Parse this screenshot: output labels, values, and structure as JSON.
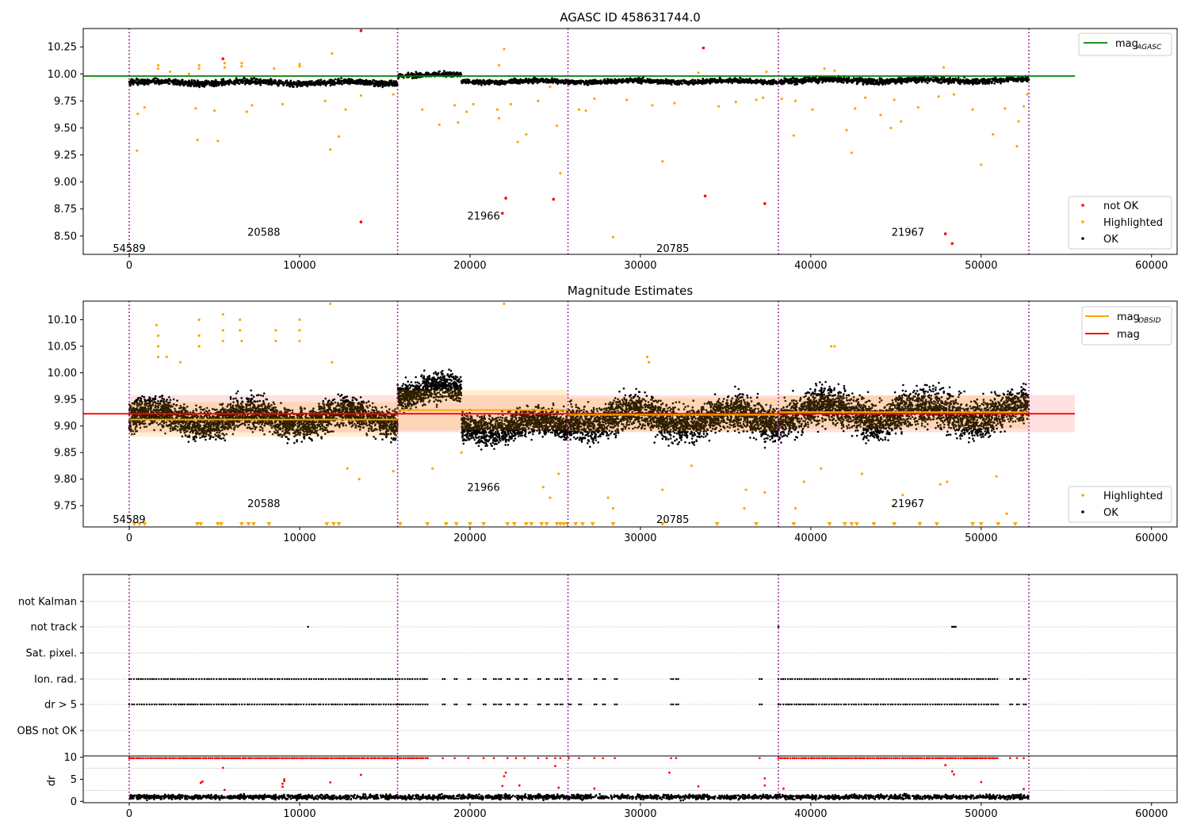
{
  "chart_data": [
    {
      "id": "top",
      "type": "scatter",
      "title": "AGASC ID 458631744.0",
      "xlim": [
        -2700,
        61500
      ],
      "ylim": [
        8.33,
        10.42
      ],
      "xticks": [
        "0",
        "10000",
        "20000",
        "30000",
        "40000",
        "50000",
        "60000"
      ],
      "yticks": [
        "8.50",
        "8.75",
        "9.00",
        "9.25",
        "9.50",
        "9.75",
        "10.00",
        "10.25"
      ],
      "vlines_x": [
        0,
        15750,
        25750,
        38100,
        52800
      ],
      "obsid_labels": [
        {
          "text": "54589",
          "x": 0,
          "y": 8.39
        },
        {
          "text": "20588",
          "x": 7900,
          "y": 8.54
        },
        {
          "text": "21966",
          "x": 20800,
          "y": 8.69
        },
        {
          "text": "20785",
          "x": 31900,
          "y": 8.39
        },
        {
          "text": "21967",
          "x": 45700,
          "y": 8.54
        }
      ],
      "mag_agasc": 9.98,
      "line_x": [
        0,
        55500
      ],
      "ok_segments": [
        {
          "x": [
            0,
            15750
          ],
          "center": 9.92,
          "spread": 0.045
        },
        {
          "x": [
            15750,
            19500
          ],
          "center": 9.99,
          "spread": 0.035
        },
        {
          "x": [
            19500,
            25750
          ],
          "center": 9.93,
          "spread": 0.035
        },
        {
          "x": [
            25750,
            38100
          ],
          "center": 9.93,
          "spread": 0.035
        },
        {
          "x": [
            38100,
            52800
          ],
          "center": 9.94,
          "spread": 0.045
        }
      ],
      "highlighted_points": [
        [
          500,
          9.63
        ],
        [
          450,
          9.29
        ],
        [
          900,
          9.69
        ],
        [
          1700,
          10.08
        ],
        [
          1700,
          10.05
        ],
        [
          2400,
          10.02
        ],
        [
          3500,
          10.0
        ],
        [
          3900,
          9.68
        ],
        [
          4000,
          9.39
        ],
        [
          4100,
          10.08
        ],
        [
          4100,
          10.05
        ],
        [
          5000,
          9.66
        ],
        [
          5200,
          9.38
        ],
        [
          5600,
          10.1
        ],
        [
          5600,
          10.06
        ],
        [
          6600,
          10.1
        ],
        [
          6600,
          10.07
        ],
        [
          6900,
          9.65
        ],
        [
          7200,
          9.71
        ],
        [
          8500,
          10.05
        ],
        [
          9000,
          9.72
        ],
        [
          10000,
          10.09
        ],
        [
          10000,
          10.07
        ],
        [
          11500,
          9.75
        ],
        [
          11800,
          9.3
        ],
        [
          11900,
          10.19
        ],
        [
          12300,
          9.42
        ],
        [
          12700,
          9.67
        ],
        [
          13600,
          9.8
        ],
        [
          15500,
          9.81
        ],
        [
          16200,
          9.97
        ],
        [
          17200,
          9.67
        ],
        [
          18200,
          9.53
        ],
        [
          19100,
          9.71
        ],
        [
          19300,
          9.55
        ],
        [
          19800,
          9.65
        ],
        [
          20200,
          9.72
        ],
        [
          21600,
          9.67
        ],
        [
          21700,
          9.59
        ],
        [
          21700,
          10.08
        ],
        [
          22000,
          10.23
        ],
        [
          22400,
          9.72
        ],
        [
          22800,
          9.37
        ],
        [
          23300,
          9.44
        ],
        [
          24000,
          9.75
        ],
        [
          24700,
          9.88
        ],
        [
          25100,
          9.52
        ],
        [
          25300,
          9.08
        ],
        [
          26400,
          9.67
        ],
        [
          26800,
          9.66
        ],
        [
          27300,
          9.77
        ],
        [
          28400,
          8.49
        ],
        [
          29200,
          9.76
        ],
        [
          30700,
          9.71
        ],
        [
          31300,
          9.19
        ],
        [
          32000,
          9.73
        ],
        [
          33400,
          10.01
        ],
        [
          34600,
          9.7
        ],
        [
          35600,
          9.74
        ],
        [
          36800,
          9.76
        ],
        [
          37200,
          9.78
        ],
        [
          37400,
          10.02
        ],
        [
          38300,
          9.77
        ],
        [
          39000,
          9.43
        ],
        [
          39100,
          9.75
        ],
        [
          40100,
          9.67
        ],
        [
          40800,
          10.05
        ],
        [
          41400,
          10.03
        ],
        [
          42100,
          9.48
        ],
        [
          42400,
          9.27
        ],
        [
          42600,
          9.68
        ],
        [
          43200,
          9.78
        ],
        [
          44100,
          9.62
        ],
        [
          44700,
          9.5
        ],
        [
          44900,
          9.76
        ],
        [
          45300,
          9.56
        ],
        [
          46300,
          9.69
        ],
        [
          47500,
          9.79
        ],
        [
          47800,
          10.06
        ],
        [
          48400,
          9.81
        ],
        [
          49500,
          9.67
        ],
        [
          50000,
          9.16
        ],
        [
          50700,
          9.44
        ],
        [
          51400,
          9.68
        ],
        [
          52100,
          9.33
        ],
        [
          52200,
          9.56
        ],
        [
          52500,
          9.7
        ],
        [
          52700,
          9.81
        ]
      ],
      "not_ok_points": [
        [
          5500,
          10.14
        ],
        [
          13600,
          10.4
        ],
        [
          13600,
          8.63
        ],
        [
          21900,
          8.71
        ],
        [
          22100,
          8.85
        ],
        [
          24900,
          8.84
        ],
        [
          33700,
          10.24
        ],
        [
          33800,
          8.87
        ],
        [
          37300,
          8.8
        ],
        [
          47900,
          8.52
        ],
        [
          48300,
          8.43
        ]
      ],
      "legend_line": {
        "label": "mag",
        "sub": "AGASC",
        "color": "#008000"
      },
      "legend_points": [
        {
          "label": "not OK",
          "color": "#ff0000"
        },
        {
          "label": "Highlighted",
          "color": "#ffa500"
        },
        {
          "label": "OK",
          "color": "#000000"
        }
      ]
    },
    {
      "id": "middle",
      "type": "scatter",
      "title": "Magnitude Estimates",
      "xlim": [
        -2700,
        61500
      ],
      "ylim": [
        9.71,
        10.135
      ],
      "xticks": [
        "0",
        "10000",
        "20000",
        "30000",
        "40000",
        "50000",
        "60000"
      ],
      "yticks": [
        "9.75",
        "9.80",
        "9.85",
        "9.90",
        "9.95",
        "10.00",
        "10.05",
        "10.10"
      ],
      "vlines_x": [
        0,
        15750,
        25750,
        38100,
        52800
      ],
      "obsid_labels": [
        {
          "text": "54589",
          "x": 0,
          "y": 9.725
        },
        {
          "text": "20588",
          "x": 7900,
          "y": 9.755
        },
        {
          "text": "21966",
          "x": 20800,
          "y": 9.785
        },
        {
          "text": "20785",
          "x": 31900,
          "y": 9.725
        },
        {
          "text": "21967",
          "x": 45700,
          "y": 9.755
        }
      ],
      "mag": 9.923,
      "mag_band": [
        9.888,
        9.958
      ],
      "line_x": [
        0,
        55500
      ],
      "mag_obsid": [
        {
          "x": [
            0,
            15750
          ],
          "y": 9.912,
          "band": [
            9.88,
            9.945
          ]
        },
        {
          "x": [
            15750,
            25750
          ],
          "y": 9.93,
          "band": [
            9.892,
            9.968
          ]
        },
        {
          "x": [
            25750,
            38100
          ],
          "y": 9.921,
          "band": [
            9.89,
            9.953
          ]
        },
        {
          "x": [
            38100,
            52800
          ],
          "y": 9.926,
          "band": [
            9.895,
            9.957
          ]
        }
      ],
      "ok_segments": [
        {
          "x": [
            0,
            15750
          ],
          "center": 9.915,
          "spread": 0.05
        },
        {
          "x": [
            15750,
            19500
          ],
          "center": 9.965,
          "spread": 0.045
        },
        {
          "x": [
            19500,
            25750
          ],
          "center": 9.9,
          "spread": 0.045
        },
        {
          "x": [
            25750,
            38100
          ],
          "center": 9.915,
          "spread": 0.055
        },
        {
          "x": [
            38100,
            52800
          ],
          "center": 9.925,
          "spread": 0.06
        }
      ],
      "highlighted_points": [
        [
          1600,
          10.09
        ],
        [
          1700,
          10.07
        ],
        [
          1700,
          10.05
        ],
        [
          1700,
          10.03
        ],
        [
          2200,
          10.03
        ],
        [
          3000,
          10.02
        ],
        [
          4100,
          10.1
        ],
        [
          4100,
          10.07
        ],
        [
          4100,
          10.05
        ],
        [
          5500,
          10.11
        ],
        [
          5500,
          10.08
        ],
        [
          5500,
          10.06
        ],
        [
          6500,
          10.1
        ],
        [
          6500,
          10.08
        ],
        [
          6600,
          10.06
        ],
        [
          8600,
          10.08
        ],
        [
          8600,
          10.06
        ],
        [
          10000,
          10.1
        ],
        [
          10000,
          10.08
        ],
        [
          10000,
          10.06
        ],
        [
          11800,
          10.13
        ],
        [
          11900,
          10.02
        ],
        [
          12800,
          9.82
        ],
        [
          13500,
          9.8
        ],
        [
          15500,
          9.815
        ],
        [
          17800,
          9.82
        ],
        [
          19500,
          9.85
        ],
        [
          22000,
          10.13
        ],
        [
          24300,
          9.785
        ],
        [
          24700,
          9.765
        ],
        [
          25200,
          9.81
        ],
        [
          28100,
          9.765
        ],
        [
          28400,
          9.745
        ],
        [
          30400,
          10.03
        ],
        [
          30500,
          10.02
        ],
        [
          31300,
          9.78
        ],
        [
          33000,
          9.825
        ],
        [
          36200,
          9.78
        ],
        [
          36100,
          9.745
        ],
        [
          37300,
          9.775
        ],
        [
          39100,
          9.745
        ],
        [
          39600,
          9.795
        ],
        [
          40600,
          9.82
        ],
        [
          41200,
          10.05
        ],
        [
          41400,
          10.05
        ],
        [
          43000,
          9.81
        ],
        [
          44800,
          9.75
        ],
        [
          45400,
          9.77
        ],
        [
          47600,
          9.79
        ],
        [
          48000,
          9.795
        ],
        [
          50900,
          9.805
        ],
        [
          51500,
          9.735
        ]
      ],
      "offscale_triangles_x": [
        300,
        600,
        900,
        4000,
        4200,
        5200,
        5400,
        6600,
        7000,
        7300,
        8200,
        11600,
        12000,
        12300,
        15900,
        17500,
        18600,
        19200,
        20000,
        20800,
        22200,
        22600,
        23300,
        23600,
        24200,
        24500,
        25100,
        25300,
        25500,
        25700,
        26200,
        26600,
        27200,
        28400,
        31300,
        34500,
        36800,
        39000,
        41100,
        42000,
        42400,
        42700,
        43700,
        44900,
        46400,
        47400,
        49500,
        50000,
        51000,
        52000
      ],
      "legend_lines": [
        {
          "label": "mag",
          "sub": "OBSID",
          "color": "#ffa500"
        },
        {
          "label": "mag",
          "sub": "",
          "color": "#ff0000"
        }
      ],
      "legend_points": [
        {
          "label": "Highlighted",
          "color": "#ffa500"
        },
        {
          "label": "OK",
          "color": "#000000"
        }
      ]
    },
    {
      "id": "flags",
      "type": "scatter",
      "xlim": [
        -2700,
        61500
      ],
      "ylabels": [
        "not Kalman",
        "not track",
        "Sat. pixel.",
        "Ion. rad.",
        "dr > 5",
        "OBS not OK"
      ],
      "vlines_x": [
        0,
        15750,
        25750,
        38100,
        52800
      ],
      "flag_rows": [
        {
          "label": "not track",
          "x": [
            10500,
            38100,
            48300,
            48400,
            48500
          ]
        },
        {
          "label": "Ion. rad.",
          "ranges": [
            [
              0,
              15750
            ],
            [
              15750,
              17600
            ],
            [
              38100,
              51000
            ]
          ],
          "sparse_x": [
            18400,
            19100,
            19900,
            20800,
            21400,
            21700,
            22200,
            22700,
            23200,
            24000,
            24500,
            25000,
            25300,
            25800,
            26400,
            27300,
            27800,
            28500,
            31800,
            32100,
            37000,
            51700,
            52100,
            52500
          ]
        },
        {
          "label": "dr > 5",
          "ranges": [
            [
              0,
              15750
            ],
            [
              15750,
              17600
            ],
            [
              38100,
              51000
            ]
          ],
          "sparse_x": [
            18400,
            19100,
            19900,
            20800,
            21400,
            21700,
            22200,
            22700,
            23200,
            24000,
            24500,
            25000,
            25300,
            25800,
            26400,
            27300,
            27800,
            28500,
            31800,
            32100,
            37000,
            51700,
            52100,
            52500
          ]
        }
      ]
    },
    {
      "id": "dr",
      "type": "scatter",
      "xlim": [
        -2700,
        61500
      ],
      "ylim": [
        -0.3,
        10.3
      ],
      "ylabel": "dr",
      "xticks": [
        "0",
        "10000",
        "20000",
        "30000",
        "40000",
        "50000",
        "60000"
      ],
      "yticks": [
        "0",
        "5",
        "10"
      ],
      "vlines_x": [
        0,
        15750,
        25750,
        38100,
        52800
      ],
      "red_top_ranges": [
        [
          0,
          15750
        ],
        [
          15750,
          17600
        ],
        [
          38100,
          51000
        ]
      ],
      "red_scatter": [
        [
          4200,
          4.2
        ],
        [
          4300,
          4.5
        ],
        [
          5500,
          7.6
        ],
        [
          5600,
          2.6
        ],
        [
          9000,
          3.3
        ],
        [
          9000,
          4.0
        ],
        [
          9100,
          4.6
        ],
        [
          9100,
          5.0
        ],
        [
          11800,
          4.3
        ],
        [
          13600,
          6.0
        ],
        [
          21900,
          3.5
        ],
        [
          22000,
          5.7
        ],
        [
          22100,
          6.5
        ],
        [
          22900,
          3.6
        ],
        [
          25000,
          8.0
        ],
        [
          25200,
          3.1
        ],
        [
          27300,
          2.9
        ],
        [
          31700,
          6.5
        ],
        [
          33400,
          3.4
        ],
        [
          37300,
          5.2
        ],
        [
          37300,
          3.6
        ],
        [
          38400,
          2.9
        ],
        [
          47900,
          8.2
        ],
        [
          48300,
          6.8
        ],
        [
          48400,
          6.1
        ],
        [
          50000,
          4.4
        ],
        [
          52500,
          2.8
        ]
      ]
    }
  ]
}
